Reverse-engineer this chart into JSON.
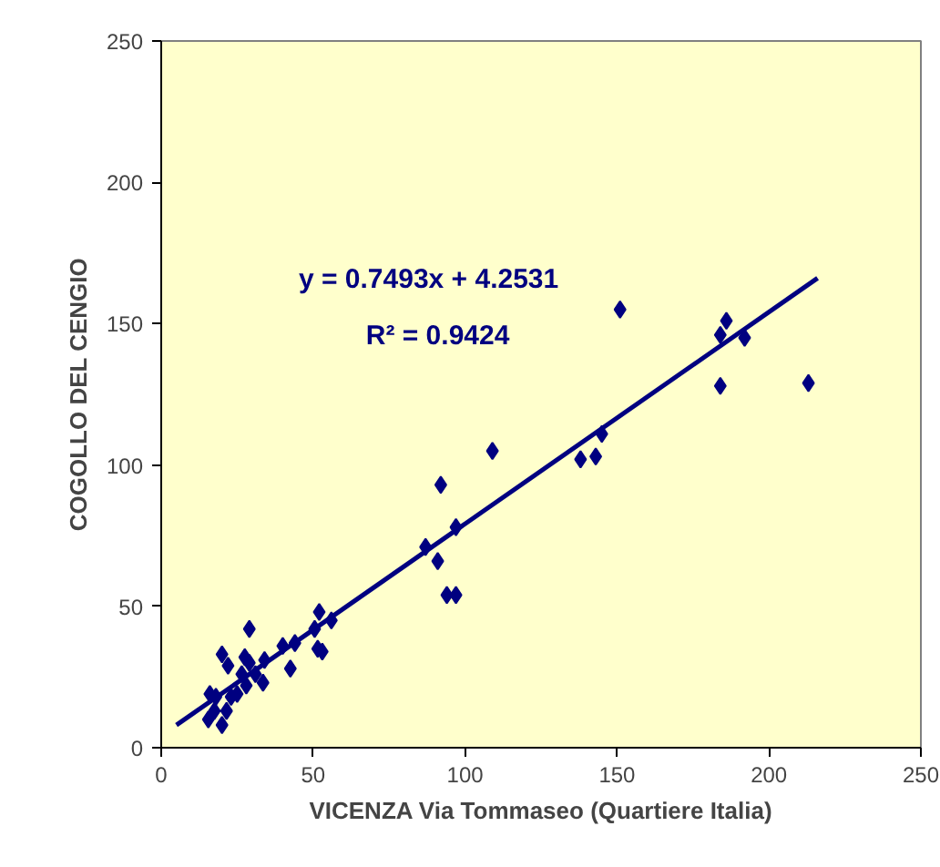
{
  "chart_data": {
    "type": "scatter",
    "xlabel": "VICENZA Via Tommaseo (Quartiere Italia)",
    "ylabel": "COGOLLO DEL CENGIO",
    "xlim": [
      0,
      250
    ],
    "ylim": [
      0,
      250
    ],
    "xticks": [
      0,
      50,
      100,
      150,
      200,
      250
    ],
    "yticks": [
      0,
      50,
      100,
      150,
      200,
      250
    ],
    "grid": false,
    "marker": "diamond",
    "series": [
      {
        "color": "#000080",
        "x": [
          151,
          184,
          186,
          192,
          184,
          213,
          145,
          138,
          143,
          109,
          92,
          97,
          87,
          91,
          94,
          97,
          52,
          50.5,
          56,
          51.5,
          53,
          29,
          40,
          44,
          42.5,
          33.5,
          20,
          22,
          27.5,
          29,
          34,
          26.5,
          31,
          16,
          18,
          17.5,
          15.5,
          20,
          21.5,
          23,
          25,
          28
        ],
        "values": [
          155,
          146,
          151,
          145,
          128,
          129,
          111,
          102,
          103,
          105,
          93,
          78,
          71,
          66,
          54,
          54,
          48,
          42,
          45,
          35,
          34,
          42,
          36,
          37,
          28,
          23,
          33,
          29,
          32,
          30,
          31,
          26,
          26,
          19,
          18,
          13,
          10,
          8,
          13,
          18,
          19,
          22
        ]
      },
      {
        "type": "line",
        "color": "#000080",
        "marker": "none",
        "x": [
          5,
          216
        ],
        "values": [
          8.0,
          166.1
        ]
      }
    ],
    "annotations": [
      "y = 0.7493x + 4.2531",
      "R² = 0.9424"
    ]
  }
}
